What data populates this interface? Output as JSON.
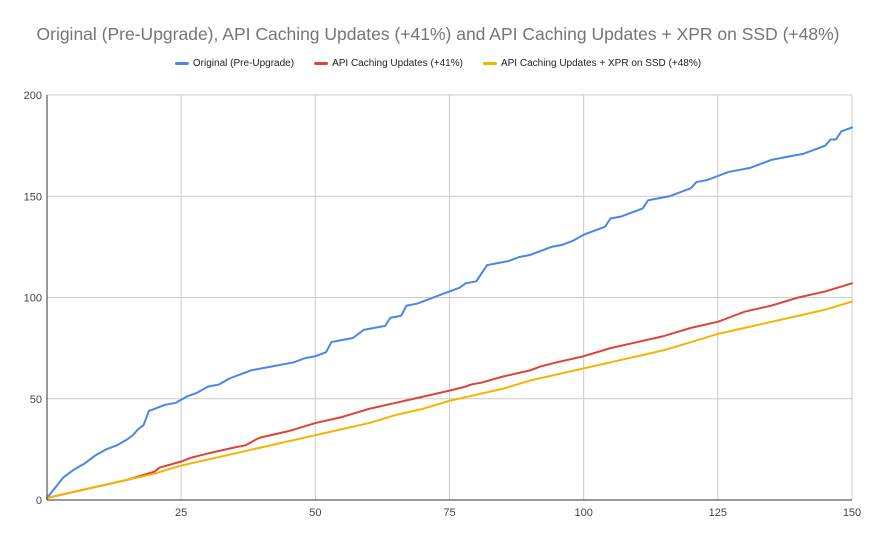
{
  "chart_data": {
    "type": "line",
    "title": "Original (Pre-Upgrade), API Caching Updates (+41%) and API Caching Updates + XPR on SSD (+48%)",
    "xlabel": "",
    "ylabel": "",
    "xlim": [
      0,
      150
    ],
    "ylim": [
      0,
      200
    ],
    "x_ticks": [
      "25",
      "50",
      "75",
      "100",
      "125",
      "150"
    ],
    "y_ticks": [
      "0",
      "50",
      "100",
      "150",
      "200"
    ],
    "grid": true,
    "legend_position": "top",
    "series": [
      {
        "name": "Original (Pre-Upgrade)",
        "color": "#4a86e8",
        "points": [
          [
            0,
            1
          ],
          [
            3,
            11
          ],
          [
            5,
            15
          ],
          [
            7,
            18
          ],
          [
            9,
            22
          ],
          [
            11,
            25
          ],
          [
            13,
            27
          ],
          [
            15,
            30
          ],
          [
            16,
            32
          ],
          [
            17,
            35
          ],
          [
            18,
            37
          ],
          [
            19,
            44
          ],
          [
            20,
            45
          ],
          [
            22,
            47
          ],
          [
            24,
            48
          ],
          [
            26,
            51
          ],
          [
            28,
            53
          ],
          [
            30,
            56
          ],
          [
            32,
            57
          ],
          [
            34,
            60
          ],
          [
            36,
            62
          ],
          [
            38,
            64
          ],
          [
            40,
            65
          ],
          [
            42,
            66
          ],
          [
            44,
            67
          ],
          [
            46,
            68
          ],
          [
            48,
            70
          ],
          [
            50,
            71
          ],
          [
            52,
            73
          ],
          [
            53,
            78
          ],
          [
            55,
            79
          ],
          [
            57,
            80
          ],
          [
            59,
            84
          ],
          [
            61,
            85
          ],
          [
            63,
            86
          ],
          [
            64,
            90
          ],
          [
            66,
            91
          ],
          [
            67,
            96
          ],
          [
            69,
            97
          ],
          [
            71,
            99
          ],
          [
            73,
            101
          ],
          [
            75,
            103
          ],
          [
            77,
            105
          ],
          [
            78,
            107
          ],
          [
            80,
            108
          ],
          [
            82,
            116
          ],
          [
            84,
            117
          ],
          [
            86,
            118
          ],
          [
            88,
            120
          ],
          [
            90,
            121
          ],
          [
            92,
            123
          ],
          [
            94,
            125
          ],
          [
            96,
            126
          ],
          [
            98,
            128
          ],
          [
            100,
            131
          ],
          [
            102,
            133
          ],
          [
            104,
            135
          ],
          [
            105,
            139
          ],
          [
            107,
            140
          ],
          [
            109,
            142
          ],
          [
            111,
            144
          ],
          [
            112,
            148
          ],
          [
            114,
            149
          ],
          [
            116,
            150
          ],
          [
            118,
            152
          ],
          [
            120,
            154
          ],
          [
            121,
            157
          ],
          [
            123,
            158
          ],
          [
            125,
            160
          ],
          [
            127,
            162
          ],
          [
            129,
            163
          ],
          [
            131,
            164
          ],
          [
            133,
            166
          ],
          [
            135,
            168
          ],
          [
            137,
            169
          ],
          [
            139,
            170
          ],
          [
            141,
            171
          ],
          [
            143,
            173
          ],
          [
            145,
            175
          ],
          [
            146,
            178
          ],
          [
            147,
            178
          ],
          [
            148,
            182
          ],
          [
            150,
            184
          ]
        ]
      },
      {
        "name": "API Caching Updates (+41%)",
        "color": "#db4437",
        "points": [
          [
            0,
            1
          ],
          [
            5,
            4
          ],
          [
            10,
            7
          ],
          [
            15,
            10
          ],
          [
            20,
            14
          ],
          [
            21,
            16
          ],
          [
            25,
            19
          ],
          [
            27,
            21
          ],
          [
            30,
            23
          ],
          [
            35,
            26
          ],
          [
            37,
            27
          ],
          [
            39,
            30
          ],
          [
            40,
            31
          ],
          [
            45,
            34
          ],
          [
            50,
            38
          ],
          [
            55,
            41
          ],
          [
            60,
            45
          ],
          [
            65,
            48
          ],
          [
            70,
            51
          ],
          [
            75,
            54
          ],
          [
            78,
            56
          ],
          [
            79,
            57
          ],
          [
            81,
            58
          ],
          [
            85,
            61
          ],
          [
            90,
            64
          ],
          [
            92,
            66
          ],
          [
            95,
            68
          ],
          [
            100,
            71
          ],
          [
            105,
            75
          ],
          [
            110,
            78
          ],
          [
            115,
            81
          ],
          [
            120,
            85
          ],
          [
            125,
            88
          ],
          [
            127,
            90
          ],
          [
            130,
            93
          ],
          [
            135,
            96
          ],
          [
            140,
            100
          ],
          [
            145,
            103
          ],
          [
            150,
            107
          ]
        ]
      },
      {
        "name": "API Caching Updates + XPR on SSD (+48%)",
        "color": "#f4b400",
        "points": [
          [
            0,
            1
          ],
          [
            5,
            4
          ],
          [
            10,
            7
          ],
          [
            15,
            10
          ],
          [
            20,
            13
          ],
          [
            25,
            17
          ],
          [
            30,
            20
          ],
          [
            35,
            23
          ],
          [
            40,
            26
          ],
          [
            45,
            29
          ],
          [
            50,
            32
          ],
          [
            55,
            35
          ],
          [
            60,
            38
          ],
          [
            65,
            42
          ],
          [
            70,
            45
          ],
          [
            75,
            49
          ],
          [
            80,
            52
          ],
          [
            85,
            55
          ],
          [
            90,
            59
          ],
          [
            95,
            62
          ],
          [
            100,
            65
          ],
          [
            105,
            68
          ],
          [
            110,
            71
          ],
          [
            115,
            74
          ],
          [
            120,
            78
          ],
          [
            125,
            82
          ],
          [
            130,
            85
          ],
          [
            135,
            88
          ],
          [
            140,
            91
          ],
          [
            145,
            94
          ],
          [
            150,
            98
          ]
        ]
      }
    ]
  }
}
